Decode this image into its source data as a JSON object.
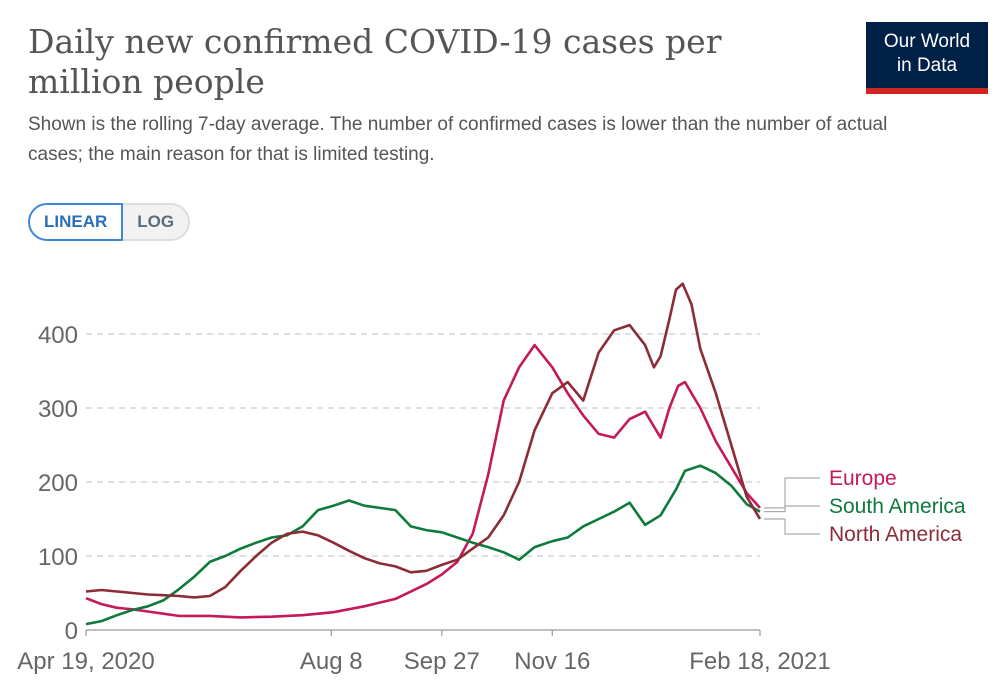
{
  "header": {
    "title": "Daily new confirmed COVID-19 cases per million people",
    "subtitle": "Shown is the rolling 7-day average. The number of confirmed cases is lower than the number of actual cases; the main reason for that is limited testing.",
    "logo_line1": "Our World",
    "logo_line2": "in Data"
  },
  "controls": {
    "linear_label": "LINEAR",
    "log_label": "LOG",
    "selected": "LINEAR"
  },
  "colors": {
    "Europe": "#c4195b",
    "South America": "#0e7a3c",
    "North America": "#8b2c36"
  },
  "chart_data": {
    "type": "line",
    "title": "Daily new confirmed COVID-19 cases per million people",
    "xlabel": "",
    "ylabel": "",
    "x_ticks": [
      "Apr 19, 2020",
      "Aug 8",
      "Sep 27",
      "Nov 16",
      "Feb 18, 2021"
    ],
    "y_ticks": [
      0,
      100,
      200,
      300,
      400
    ],
    "xlim": [
      "2020-04-19",
      "2021-02-18"
    ],
    "ylim": [
      0,
      470
    ],
    "grid": "horizontal dashed",
    "legend": "right, line-end labels",
    "series": [
      {
        "name": "Europe",
        "points": [
          [
            "2020-04-19",
            43
          ],
          [
            "2020-04-26",
            35
          ],
          [
            "2020-05-03",
            30
          ],
          [
            "2020-05-10",
            28
          ],
          [
            "2020-05-17",
            25
          ],
          [
            "2020-05-24",
            22
          ],
          [
            "2020-05-31",
            19
          ],
          [
            "2020-06-14",
            19
          ],
          [
            "2020-06-28",
            17
          ],
          [
            "2020-07-12",
            18
          ],
          [
            "2020-07-26",
            20
          ],
          [
            "2020-08-09",
            24
          ],
          [
            "2020-08-23",
            32
          ],
          [
            "2020-09-06",
            42
          ],
          [
            "2020-09-20",
            62
          ],
          [
            "2020-09-27",
            75
          ],
          [
            "2020-10-04",
            92
          ],
          [
            "2020-10-11",
            130
          ],
          [
            "2020-10-18",
            210
          ],
          [
            "2020-10-25",
            310
          ],
          [
            "2020-11-01",
            355
          ],
          [
            "2020-11-08",
            385
          ],
          [
            "2020-11-12",
            370
          ],
          [
            "2020-11-16",
            355
          ],
          [
            "2020-11-23",
            320
          ],
          [
            "2020-11-30",
            290
          ],
          [
            "2020-12-07",
            265
          ],
          [
            "2020-12-14",
            260
          ],
          [
            "2020-12-21",
            285
          ],
          [
            "2020-12-28",
            295
          ],
          [
            "2021-01-01",
            275
          ],
          [
            "2021-01-04",
            260
          ],
          [
            "2021-01-08",
            300
          ],
          [
            "2021-01-12",
            330
          ],
          [
            "2021-01-15",
            335
          ],
          [
            "2021-01-22",
            300
          ],
          [
            "2021-01-29",
            255
          ],
          [
            "2021-02-05",
            220
          ],
          [
            "2021-02-12",
            185
          ],
          [
            "2021-02-18",
            165
          ]
        ]
      },
      {
        "name": "South America",
        "points": [
          [
            "2020-04-19",
            8
          ],
          [
            "2020-04-26",
            12
          ],
          [
            "2020-05-03",
            20
          ],
          [
            "2020-05-10",
            27
          ],
          [
            "2020-05-17",
            32
          ],
          [
            "2020-05-24",
            40
          ],
          [
            "2020-05-31",
            55
          ],
          [
            "2020-06-07",
            72
          ],
          [
            "2020-06-14",
            92
          ],
          [
            "2020-06-21",
            100
          ],
          [
            "2020-06-28",
            110
          ],
          [
            "2020-07-05",
            118
          ],
          [
            "2020-07-12",
            125
          ],
          [
            "2020-07-19",
            128
          ],
          [
            "2020-07-26",
            140
          ],
          [
            "2020-08-02",
            162
          ],
          [
            "2020-08-09",
            168
          ],
          [
            "2020-08-16",
            175
          ],
          [
            "2020-08-23",
            168
          ],
          [
            "2020-08-30",
            165
          ],
          [
            "2020-09-06",
            162
          ],
          [
            "2020-09-13",
            140
          ],
          [
            "2020-09-20",
            135
          ],
          [
            "2020-09-27",
            132
          ],
          [
            "2020-10-04",
            125
          ],
          [
            "2020-10-11",
            118
          ],
          [
            "2020-10-18",
            112
          ],
          [
            "2020-10-25",
            105
          ],
          [
            "2020-11-01",
            95
          ],
          [
            "2020-11-08",
            112
          ],
          [
            "2020-11-16",
            120
          ],
          [
            "2020-11-23",
            125
          ],
          [
            "2020-11-30",
            140
          ],
          [
            "2020-12-07",
            150
          ],
          [
            "2020-12-14",
            160
          ],
          [
            "2020-12-21",
            172
          ],
          [
            "2020-12-28",
            142
          ],
          [
            "2021-01-04",
            155
          ],
          [
            "2021-01-11",
            190
          ],
          [
            "2021-01-15",
            215
          ],
          [
            "2021-01-22",
            222
          ],
          [
            "2021-01-29",
            212
          ],
          [
            "2021-02-05",
            195
          ],
          [
            "2021-02-12",
            170
          ],
          [
            "2021-02-18",
            160
          ]
        ]
      },
      {
        "name": "North America",
        "points": [
          [
            "2020-04-19",
            52
          ],
          [
            "2020-04-26",
            54
          ],
          [
            "2020-05-03",
            52
          ],
          [
            "2020-05-10",
            50
          ],
          [
            "2020-05-17",
            48
          ],
          [
            "2020-05-24",
            47
          ],
          [
            "2020-05-31",
            46
          ],
          [
            "2020-06-07",
            44
          ],
          [
            "2020-06-14",
            46
          ],
          [
            "2020-06-21",
            58
          ],
          [
            "2020-06-28",
            80
          ],
          [
            "2020-07-05",
            100
          ],
          [
            "2020-07-12",
            118
          ],
          [
            "2020-07-19",
            130
          ],
          [
            "2020-07-26",
            133
          ],
          [
            "2020-08-02",
            128
          ],
          [
            "2020-08-09",
            118
          ],
          [
            "2020-08-16",
            107
          ],
          [
            "2020-08-23",
            97
          ],
          [
            "2020-08-30",
            90
          ],
          [
            "2020-09-06",
            86
          ],
          [
            "2020-09-13",
            78
          ],
          [
            "2020-09-20",
            80
          ],
          [
            "2020-09-27",
            88
          ],
          [
            "2020-10-04",
            95
          ],
          [
            "2020-10-11",
            110
          ],
          [
            "2020-10-18",
            125
          ],
          [
            "2020-10-25",
            155
          ],
          [
            "2020-11-01",
            200
          ],
          [
            "2020-11-08",
            270
          ],
          [
            "2020-11-16",
            320
          ],
          [
            "2020-11-23",
            335
          ],
          [
            "2020-11-30",
            310
          ],
          [
            "2020-12-07",
            375
          ],
          [
            "2020-12-14",
            405
          ],
          [
            "2020-12-21",
            412
          ],
          [
            "2020-12-28",
            385
          ],
          [
            "2021-01-01",
            355
          ],
          [
            "2021-01-04",
            370
          ],
          [
            "2021-01-08",
            420
          ],
          [
            "2021-01-11",
            460
          ],
          [
            "2021-01-14",
            468
          ],
          [
            "2021-01-18",
            440
          ],
          [
            "2021-01-22",
            380
          ],
          [
            "2021-01-29",
            320
          ],
          [
            "2021-02-05",
            250
          ],
          [
            "2021-02-12",
            180
          ],
          [
            "2021-02-18",
            150
          ]
        ]
      }
    ],
    "legend_order": [
      "Europe",
      "South America",
      "North America"
    ]
  }
}
